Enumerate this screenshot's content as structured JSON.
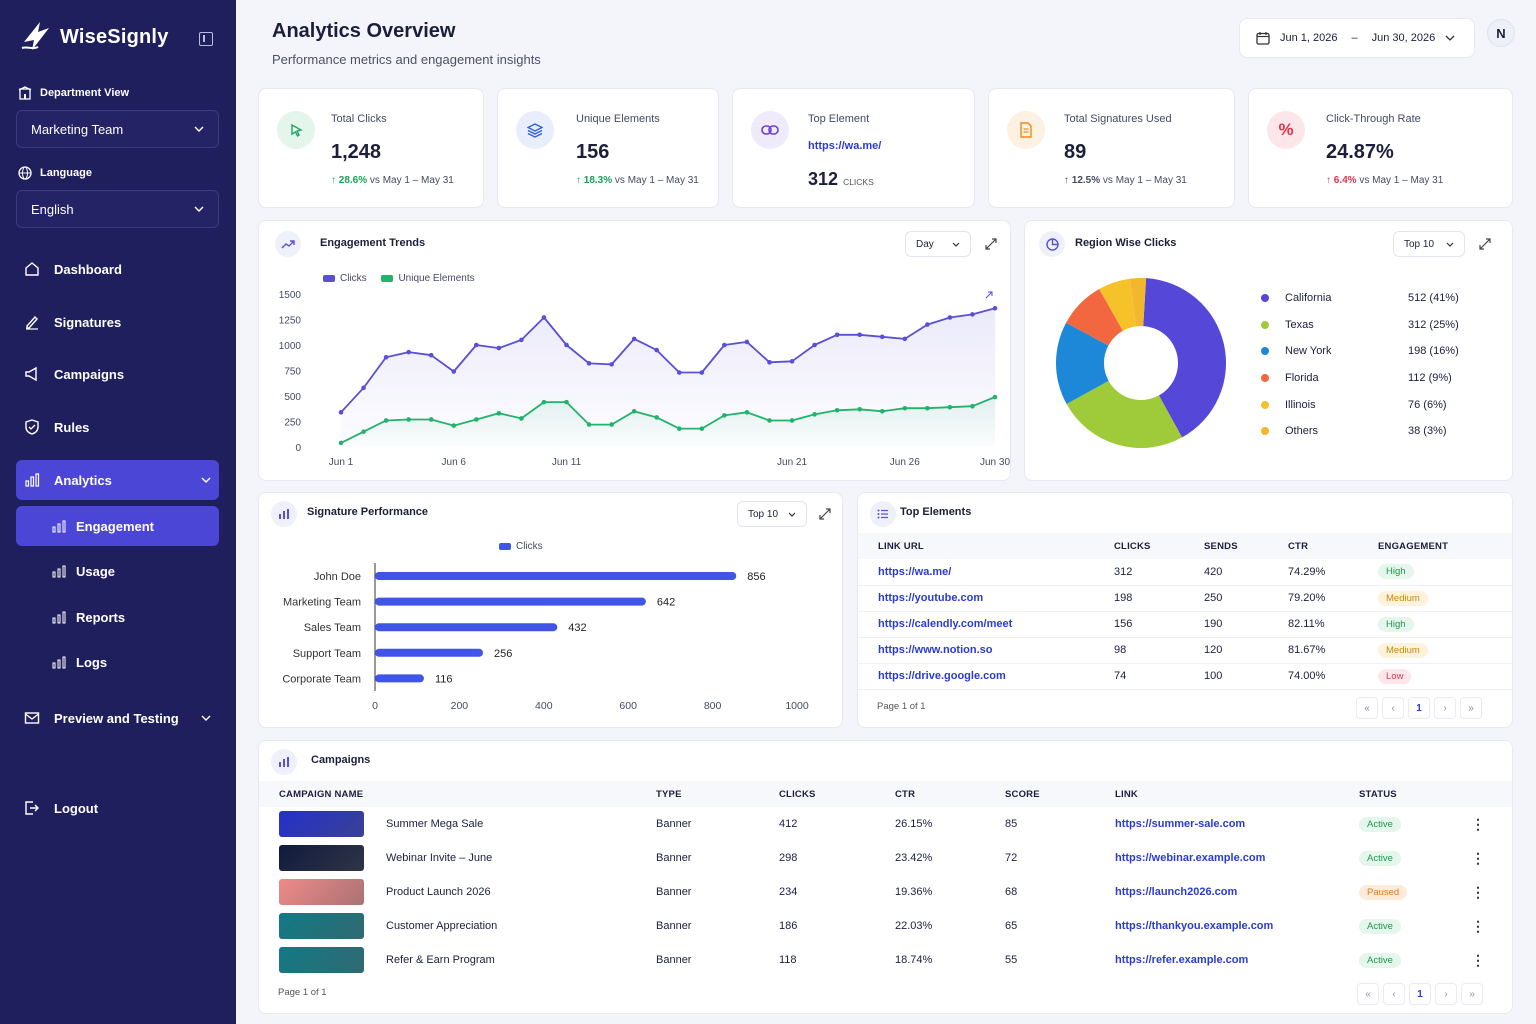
{
  "app": {
    "name": "WiseSignly"
  },
  "sidebar": {
    "department_label": "Department View",
    "department_value": "Marketing Team",
    "language_label": "Language",
    "language_value": "English",
    "nav": [
      {
        "label": "Dashboard"
      },
      {
        "label": "Signatures"
      },
      {
        "label": "Campaigns"
      },
      {
        "label": "Rules"
      },
      {
        "label": "Analytics"
      },
      {
        "label": "Engagement"
      },
      {
        "label": "Usage"
      },
      {
        "label": "Reports"
      },
      {
        "label": "Logs"
      },
      {
        "label": "Preview and Testing"
      }
    ],
    "logout": "Logout"
  },
  "header": {
    "title": "Analytics Overview",
    "subtitle": "Performance metrics and engagement insights",
    "date_from": "Jun 1, 2026",
    "date_sep": "–",
    "date_to": "Jun 30, 2026",
    "avatar": "N"
  },
  "stats": [
    {
      "label": "Total Clicks",
      "value": "1,248",
      "delta": "28.6%",
      "compare": "vs May 1 – May 31"
    },
    {
      "label": "Unique Elements",
      "value": "156",
      "delta": "18.3%",
      "compare": "vs May 1 – May 31"
    },
    {
      "label": "Top Element",
      "link": "https://wa.me/",
      "value": "312",
      "unit": "CLICKS"
    },
    {
      "label": "Total Signatures Used",
      "value": "89",
      "delta": "12.5%",
      "compare": "vs May 1 – May 31"
    },
    {
      "label": "Click-Through Rate",
      "value": "24.87%",
      "delta": "6.4%",
      "compare": "vs May 1 – May 31"
    }
  ],
  "trends": {
    "title": "Engagement Trends",
    "period": "Day",
    "legend": [
      "Clicks",
      "Unique Elements"
    ]
  },
  "regions": {
    "title": "Region Wise Clicks",
    "filter": "Top 10",
    "items": [
      {
        "name": "California",
        "value": "512 (41%)",
        "color": "#5548d9"
      },
      {
        "name": "Texas",
        "value": "312 (25%)",
        "color": "#9fcb3a"
      },
      {
        "name": "New York",
        "value": "198 (16%)",
        "color": "#1e88d8"
      },
      {
        "name": "Florida",
        "value": "112 (9%)",
        "color": "#f2673f"
      },
      {
        "name": "Illinois",
        "value": "76 (6%)",
        "color": "#f6c22a"
      },
      {
        "name": "Others",
        "value": "38 (3%)",
        "color": "#f2b72d"
      }
    ]
  },
  "signature_perf": {
    "title": "Signature Performance",
    "filter": "Top 10",
    "legend": "Clicks"
  },
  "top_elements": {
    "title": "Top Elements",
    "columns": [
      "LINK URL",
      "CLICKS",
      "SENDS",
      "CTR",
      "ENGAGEMENT"
    ],
    "rows": [
      {
        "url": "https://wa.me/",
        "clicks": "312",
        "sends": "420",
        "ctr": "74.29%",
        "engagement": "High"
      },
      {
        "url": "https://youtube.com",
        "clicks": "198",
        "sends": "250",
        "ctr": "79.20%",
        "engagement": "Medium"
      },
      {
        "url": "https://calendly.com/meet",
        "clicks": "156",
        "sends": "190",
        "ctr": "82.11%",
        "engagement": "High"
      },
      {
        "url": "https://www.notion.so",
        "clicks": "98",
        "sends": "120",
        "ctr": "81.67%",
        "engagement": "Medium"
      },
      {
        "url": "https://drive.google.com",
        "clicks": "74",
        "sends": "100",
        "ctr": "74.00%",
        "engagement": "Low"
      }
    ],
    "page_info": "Page 1 of 1",
    "pager": [
      "«",
      "‹",
      "1",
      "›",
      "»"
    ]
  },
  "campaigns": {
    "title": "Campaigns",
    "columns": [
      "CAMPAIGN NAME",
      "TYPE",
      "CLICKS",
      "CTR",
      "SCORE",
      "LINK",
      "STATUS"
    ],
    "rows": [
      {
        "name": "Summer Mega Sale",
        "type": "Banner",
        "clicks": "412",
        "ctr": "26.15%",
        "score": "85",
        "link": "https://summer-sale.com",
        "status": "Active",
        "thumb": "#2430c9"
      },
      {
        "name": "Webinar Invite – June",
        "type": "Banner",
        "clicks": "298",
        "ctr": "23.42%",
        "score": "72",
        "link": "https://webinar.example.com",
        "status": "Active",
        "thumb": "#101a3c"
      },
      {
        "name": "Product Launch 2026",
        "type": "Banner",
        "clicks": "234",
        "ctr": "19.36%",
        "score": "68",
        "link": "https://launch2026.com",
        "status": "Paused",
        "thumb": "#f08a8a"
      },
      {
        "name": "Customer Appreciation",
        "type": "Banner",
        "clicks": "186",
        "ctr": "22.03%",
        "score": "65",
        "link": "https://thankyou.example.com",
        "status": "Active",
        "thumb": "#127a86"
      },
      {
        "name": "Refer & Earn Program",
        "type": "Banner",
        "clicks": "118",
        "ctr": "18.74%",
        "score": "55",
        "link": "https://refer.example.com",
        "status": "Active",
        "thumb": "#127a86"
      }
    ],
    "page_info": "Page 1 of 1",
    "pager": [
      "«",
      "‹",
      "1",
      "›",
      "»"
    ]
  },
  "chart_data": [
    {
      "type": "area",
      "x": [
        "Jun 1",
        "Jun 2",
        "Jun 3",
        "Jun 4",
        "Jun 5",
        "Jun 6",
        "Jun 7",
        "Jun 8",
        "Jun 9",
        "Jun 10",
        "Jun 11",
        "Jun 12",
        "Jun 13",
        "Jun 14",
        "Jun 15",
        "Jun 16",
        "Jun 17",
        "Jun 18",
        "Jun 19",
        "Jun 20",
        "Jun 21",
        "Jun 22",
        "Jun 23",
        "Jun 24",
        "Jun 25",
        "Jun 26",
        "Jun 27",
        "Jun 28",
        "Jun 29",
        "Jun 30"
      ],
      "xticks": [
        "Jun 1",
        "Jun 6",
        "Jun 11",
        "Jun 21",
        "Jun 26",
        "Jun 30"
      ],
      "ylim": [
        0,
        1500
      ],
      "yticks": [
        0,
        250,
        500,
        750,
        1000,
        1250,
        1500
      ],
      "series": [
        {
          "name": "Clicks",
          "color": "#5a4fd6",
          "values": [
            340,
            580,
            880,
            930,
            900,
            740,
            1000,
            970,
            1050,
            1270,
            1000,
            820,
            810,
            1060,
            950,
            730,
            730,
            1000,
            1030,
            830,
            840,
            1000,
            1100,
            1100,
            1080,
            1060,
            1200,
            1270,
            1300,
            1360
          ]
        },
        {
          "name": "Unique Elements",
          "color": "#20b36c",
          "values": [
            40,
            150,
            260,
            270,
            270,
            210,
            270,
            330,
            280,
            440,
            440,
            220,
            220,
            350,
            290,
            180,
            180,
            310,
            340,
            260,
            260,
            320,
            360,
            370,
            350,
            380,
            380,
            390,
            400,
            490
          ]
        }
      ]
    },
    {
      "type": "pie",
      "labels": [
        "California",
        "Texas",
        "New York",
        "Florida",
        "Illinois",
        "Others"
      ],
      "values": [
        512,
        312,
        198,
        112,
        76,
        38
      ],
      "colors": [
        "#5548d9",
        "#9fcb3a",
        "#1e88d8",
        "#f2673f",
        "#f6c22a",
        "#f2b72d"
      ]
    },
    {
      "type": "bar",
      "orientation": "horizontal",
      "categories": [
        "John Doe",
        "Marketing Team",
        "Sales Team",
        "Support Team",
        "Corporate Team"
      ],
      "series": [
        {
          "name": "Clicks",
          "values": [
            856,
            642,
            432,
            256,
            116
          ]
        }
      ],
      "xlim": [
        0,
        1000
      ],
      "xticks": [
        0,
        200,
        400,
        600,
        800,
        1000
      ],
      "color": "#4055e8"
    }
  ]
}
